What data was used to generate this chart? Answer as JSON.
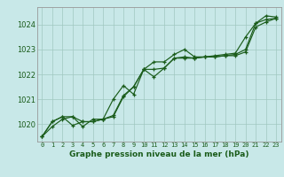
{
  "xlabel": "Graphe pression niveau de la mer (hPa)",
  "ylabel": "",
  "background_color": "#c8e8e8",
  "plot_bg_color": "#c8e8e8",
  "grid_color": "#a0c8c0",
  "line_color": "#1a5c1a",
  "ylim": [
    1019.3,
    1024.7
  ],
  "xlim": [
    -0.5,
    23.5
  ],
  "yticks": [
    1020,
    1021,
    1022,
    1023,
    1024
  ],
  "xticks": [
    0,
    1,
    2,
    3,
    4,
    5,
    6,
    7,
    8,
    9,
    10,
    11,
    12,
    13,
    14,
    15,
    16,
    17,
    18,
    19,
    20,
    21,
    22,
    23
  ],
  "series": [
    [
      1019.5,
      1019.9,
      1020.2,
      1020.3,
      1019.9,
      1020.2,
      1020.2,
      1020.3,
      1021.1,
      1021.5,
      1022.2,
      1021.9,
      1022.25,
      1022.65,
      1022.7,
      1022.65,
      1022.7,
      1022.7,
      1022.75,
      1022.8,
      1023.0,
      1024.05,
      1024.2,
      1024.25
    ],
    [
      1019.5,
      1020.1,
      1020.3,
      1019.95,
      1020.1,
      1020.1,
      1020.2,
      1021.0,
      1021.55,
      1021.2,
      1022.2,
      1022.5,
      1022.5,
      1022.8,
      1023.0,
      1022.7,
      1022.7,
      1022.75,
      1022.8,
      1022.85,
      1023.5,
      1024.05,
      1024.35,
      1024.3
    ],
    [
      1019.5,
      1020.1,
      1020.3,
      1020.3,
      1020.1,
      1020.1,
      1020.2,
      1020.35,
      1021.15,
      1021.5,
      1022.2,
      1022.2,
      1022.25,
      1022.65,
      1022.65,
      1022.65,
      1022.7,
      1022.7,
      1022.75,
      1022.75,
      1022.9,
      1023.9,
      1024.1,
      1024.25
    ]
  ]
}
